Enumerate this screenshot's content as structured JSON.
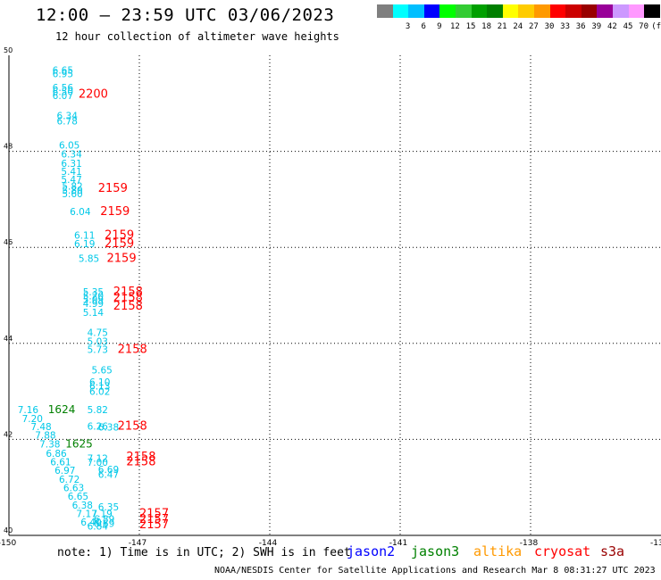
{
  "header": {
    "title": "12:00 – 23:59 UTC 03/06/2023",
    "subtitle": "12 hour collection of altimeter wave heights"
  },
  "legend": {
    "items": [
      {
        "label": "",
        "color": "#7f7f7f"
      },
      {
        "label": "3",
        "color": "#00ffff"
      },
      {
        "label": "6",
        "color": "#00bfff"
      },
      {
        "label": "9",
        "color": "#0000ff"
      },
      {
        "label": "12",
        "color": "#00ff00"
      },
      {
        "label": "15",
        "color": "#33cc33"
      },
      {
        "label": "18",
        "color": "#00a000"
      },
      {
        "label": "21",
        "color": "#007f00"
      },
      {
        "label": "24",
        "color": "#ffff00"
      },
      {
        "label": "27",
        "color": "#ffcc00"
      },
      {
        "label": "30",
        "color": "#ff9900"
      },
      {
        "label": "33",
        "color": "#ff0000"
      },
      {
        "label": "36",
        "color": "#cc0000"
      },
      {
        "label": "39",
        "color": "#990000"
      },
      {
        "label": "42",
        "color": "#990099"
      },
      {
        "label": "45",
        "color": "#cc99ff"
      },
      {
        "label": "70",
        "color": "#ff99ff"
      },
      {
        "label": "(ft)",
        "color": "#000000"
      }
    ]
  },
  "map": {
    "x_ticks": [
      "-150",
      "-147",
      "-144",
      "-141",
      "-138",
      "-13"
    ],
    "y_ticks": [
      "50",
      "48",
      "46",
      "44",
      "42",
      "40"
    ],
    "lon_range": [
      -150,
      -135
    ],
    "lat_range": [
      40,
      50
    ],
    "grid": "dotted",
    "colors": {
      "low": "#00c8e8",
      "time_red": "#ff0000",
      "time_green": "#008000"
    }
  },
  "points": [
    {
      "lon": -149.0,
      "lat": 49.62,
      "text": "6.65",
      "kind": "low"
    },
    {
      "lon": -149.0,
      "lat": 49.54,
      "text": "6.95",
      "kind": "low"
    },
    {
      "lon": -149.0,
      "lat": 49.26,
      "text": "6.56",
      "kind": "low"
    },
    {
      "lon": -149.0,
      "lat": 49.17,
      "text": "6.50",
      "kind": "low"
    },
    {
      "lon": -149.0,
      "lat": 49.09,
      "text": "6.07",
      "kind": "low"
    },
    {
      "lon": -148.4,
      "lat": 49.12,
      "text": "2200",
      "kind": "time"
    },
    {
      "lon": -148.9,
      "lat": 48.67,
      "text": "6.34",
      "kind": "low"
    },
    {
      "lon": -148.9,
      "lat": 48.56,
      "text": "6.78",
      "kind": "low"
    },
    {
      "lon": -148.85,
      "lat": 48.06,
      "text": "6.05",
      "kind": "low"
    },
    {
      "lon": -148.8,
      "lat": 47.87,
      "text": "6.34",
      "kind": "low"
    },
    {
      "lon": -148.8,
      "lat": 47.68,
      "text": "6.31",
      "kind": "low"
    },
    {
      "lon": -148.8,
      "lat": 47.51,
      "text": "5.41",
      "kind": "low"
    },
    {
      "lon": -148.8,
      "lat": 47.34,
      "text": "5.47",
      "kind": "low"
    },
    {
      "lon": -148.78,
      "lat": 47.2,
      "text": "5.82",
      "kind": "low"
    },
    {
      "lon": -148.78,
      "lat": 47.12,
      "text": "5.80",
      "kind": "low"
    },
    {
      "lon": -148.78,
      "lat": 47.04,
      "text": "5.60",
      "kind": "low"
    },
    {
      "lon": -147.95,
      "lat": 47.16,
      "text": "2159",
      "kind": "time"
    },
    {
      "lon": -148.6,
      "lat": 46.67,
      "text": "6.04",
      "kind": "low"
    },
    {
      "lon": -147.9,
      "lat": 46.67,
      "text": "2159",
      "kind": "time"
    },
    {
      "lon": -148.5,
      "lat": 46.18,
      "text": "6.11",
      "kind": "low"
    },
    {
      "lon": -148.5,
      "lat": 46.0,
      "text": "6.19",
      "kind": "low"
    },
    {
      "lon": -147.8,
      "lat": 46.18,
      "text": "2159",
      "kind": "time"
    },
    {
      "lon": -147.8,
      "lat": 46.0,
      "text": "2159",
      "kind": "time"
    },
    {
      "lon": -148.4,
      "lat": 45.7,
      "text": "5.85",
      "kind": "low"
    },
    {
      "lon": -147.75,
      "lat": 45.7,
      "text": "2159",
      "kind": "time"
    },
    {
      "lon": -148.3,
      "lat": 45.0,
      "text": "5.35",
      "kind": "low"
    },
    {
      "lon": -148.3,
      "lat": 44.92,
      "text": "5.20",
      "kind": "low"
    },
    {
      "lon": -148.3,
      "lat": 44.84,
      "text": "5.09",
      "kind": "low"
    },
    {
      "lon": -148.3,
      "lat": 44.76,
      "text": "4.99",
      "kind": "low"
    },
    {
      "lon": -148.3,
      "lat": 44.57,
      "text": "5.14",
      "kind": "low"
    },
    {
      "lon": -147.6,
      "lat": 45.0,
      "text": "2158",
      "kind": "time"
    },
    {
      "lon": -147.6,
      "lat": 44.88,
      "text": "2158",
      "kind": "time"
    },
    {
      "lon": -147.6,
      "lat": 44.7,
      "text": "2158",
      "kind": "time"
    },
    {
      "lon": -148.2,
      "lat": 44.15,
      "text": "4.75",
      "kind": "low"
    },
    {
      "lon": -148.2,
      "lat": 43.97,
      "text": "5.03",
      "kind": "low"
    },
    {
      "lon": -148.2,
      "lat": 43.8,
      "text": "5.73",
      "kind": "low"
    },
    {
      "lon": -147.5,
      "lat": 43.8,
      "text": "2158",
      "kind": "time"
    },
    {
      "lon": -148.1,
      "lat": 43.37,
      "text": "5.65",
      "kind": "low"
    },
    {
      "lon": -148.15,
      "lat": 43.12,
      "text": "6.10",
      "kind": "low"
    },
    {
      "lon": -148.15,
      "lat": 43.04,
      "text": "6.13",
      "kind": "low"
    },
    {
      "lon": -148.15,
      "lat": 42.93,
      "text": "6.02",
      "kind": "low"
    },
    {
      "lon": -149.8,
      "lat": 42.55,
      "text": "7.16",
      "kind": "low"
    },
    {
      "lon": -149.1,
      "lat": 42.55,
      "text": "1624",
      "kind": "time_green"
    },
    {
      "lon": -149.7,
      "lat": 42.36,
      "text": "7.20",
      "kind": "low"
    },
    {
      "lon": -149.5,
      "lat": 42.19,
      "text": "7.48",
      "kind": "low"
    },
    {
      "lon": -149.4,
      "lat": 42.02,
      "text": "7.88",
      "kind": "low"
    },
    {
      "lon": -149.3,
      "lat": 41.83,
      "text": "7.38",
      "kind": "low"
    },
    {
      "lon": -148.7,
      "lat": 41.83,
      "text": "1625",
      "kind": "time_green"
    },
    {
      "lon": -148.2,
      "lat": 42.55,
      "text": "5.82",
      "kind": "low"
    },
    {
      "lon": -148.2,
      "lat": 42.2,
      "text": "6.26",
      "kind": "low"
    },
    {
      "lon": -147.95,
      "lat": 42.18,
      "text": "6.38",
      "kind": "low"
    },
    {
      "lon": -147.5,
      "lat": 42.2,
      "text": "2158",
      "kind": "time"
    },
    {
      "lon": -149.15,
      "lat": 41.64,
      "text": "6.86",
      "kind": "low"
    },
    {
      "lon": -149.05,
      "lat": 41.46,
      "text": "6.61",
      "kind": "low"
    },
    {
      "lon": -148.95,
      "lat": 41.28,
      "text": "6.97",
      "kind": "low"
    },
    {
      "lon": -148.85,
      "lat": 41.1,
      "text": "6.72",
      "kind": "low"
    },
    {
      "lon": -148.75,
      "lat": 40.92,
      "text": "6.63",
      "kind": "low"
    },
    {
      "lon": -148.65,
      "lat": 40.74,
      "text": "6.65",
      "kind": "low"
    },
    {
      "lon": -148.55,
      "lat": 40.56,
      "text": "6.38",
      "kind": "low"
    },
    {
      "lon": -148.45,
      "lat": 40.38,
      "text": "7.17",
      "kind": "low"
    },
    {
      "lon": -148.35,
      "lat": 40.2,
      "text": "6.40",
      "kind": "low"
    },
    {
      "lon": -148.2,
      "lat": 40.12,
      "text": "6.84",
      "kind": "low"
    },
    {
      "lon": -148.2,
      "lat": 41.53,
      "text": "7.12",
      "kind": "low"
    },
    {
      "lon": -148.2,
      "lat": 41.45,
      "text": "7.00",
      "kind": "low"
    },
    {
      "lon": -147.95,
      "lat": 41.3,
      "text": "6.69",
      "kind": "low"
    },
    {
      "lon": -147.95,
      "lat": 41.2,
      "text": "6.47",
      "kind": "low"
    },
    {
      "lon": -147.3,
      "lat": 41.56,
      "text": "2158",
      "kind": "time"
    },
    {
      "lon": -147.3,
      "lat": 41.46,
      "text": "2158",
      "kind": "time"
    },
    {
      "lon": -147.95,
      "lat": 40.52,
      "text": "6.35",
      "kind": "low"
    },
    {
      "lon": -148.1,
      "lat": 40.38,
      "text": "7.19",
      "kind": "low"
    },
    {
      "lon": -148.05,
      "lat": 40.27,
      "text": "6.89",
      "kind": "low"
    },
    {
      "lon": -148.05,
      "lat": 40.18,
      "text": "6.69",
      "kind": "low"
    },
    {
      "lon": -147.0,
      "lat": 40.38,
      "text": "2157",
      "kind": "time"
    },
    {
      "lon": -147.0,
      "lat": 40.26,
      "text": "2157",
      "kind": "time"
    },
    {
      "lon": -147.0,
      "lat": 40.15,
      "text": "2157",
      "kind": "time"
    }
  ],
  "footer": {
    "note": "note:  1) Time is in UTC; 2) SWH is in feet",
    "satellites": [
      {
        "name": "jason2",
        "color": "#0000ff"
      },
      {
        "name": "jason3",
        "color": "#008000"
      },
      {
        "name": "altika",
        "color": "#ff9900"
      },
      {
        "name": "cryosat",
        "color": "#ff0000"
      },
      {
        "name": "s3a",
        "color": "#990000"
      }
    ],
    "credit": "NOAA/NESDIS Center for Satellite Applications and Research    Mar  8 08:31:27 UTC 2023"
  }
}
